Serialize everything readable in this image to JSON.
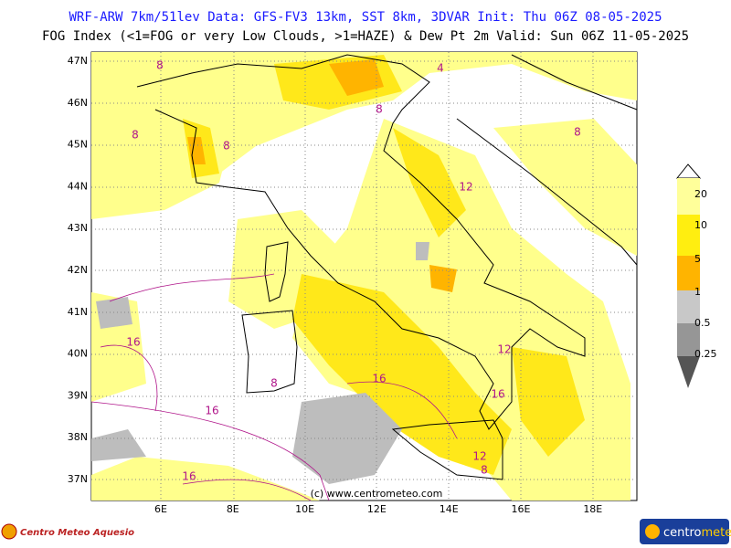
{
  "header": {
    "line1": "WRF-ARW 7km/51lev  Data: GFS-FV3 13km, SST 8km, 3DVAR  Init: Thu 06Z 08-05-2025",
    "line2": "FOG Index (<1=FOG or very Low Clouds, >1=HAZE) & Dew Pt 2m  Valid: Sun 06Z 11-05-2025"
  },
  "map": {
    "lat_labels": [
      "47N",
      "46N",
      "45N",
      "44N",
      "43N",
      "42N",
      "41N",
      "40N",
      "39N",
      "38N",
      "37N"
    ],
    "lon_labels": [
      "6E",
      "8E",
      "10E",
      "12E",
      "14E",
      "16E",
      "18E"
    ],
    "contour_labels": [
      "8",
      "8",
      "8",
      "4",
      "8",
      "12",
      "8",
      "16",
      "16",
      "16",
      "16",
      "12",
      "16",
      "12",
      "8",
      "8"
    ],
    "watermark": "(c) www.centrometeo.com"
  },
  "legend": {
    "labels": [
      "20",
      "10",
      "5",
      "1",
      "0.5",
      "0.25"
    ]
  },
  "footer": {
    "left_logo": "Centro Meteo Aquesio",
    "right_logo_a": "centro",
    "right_logo_b": "meteo"
  }
}
